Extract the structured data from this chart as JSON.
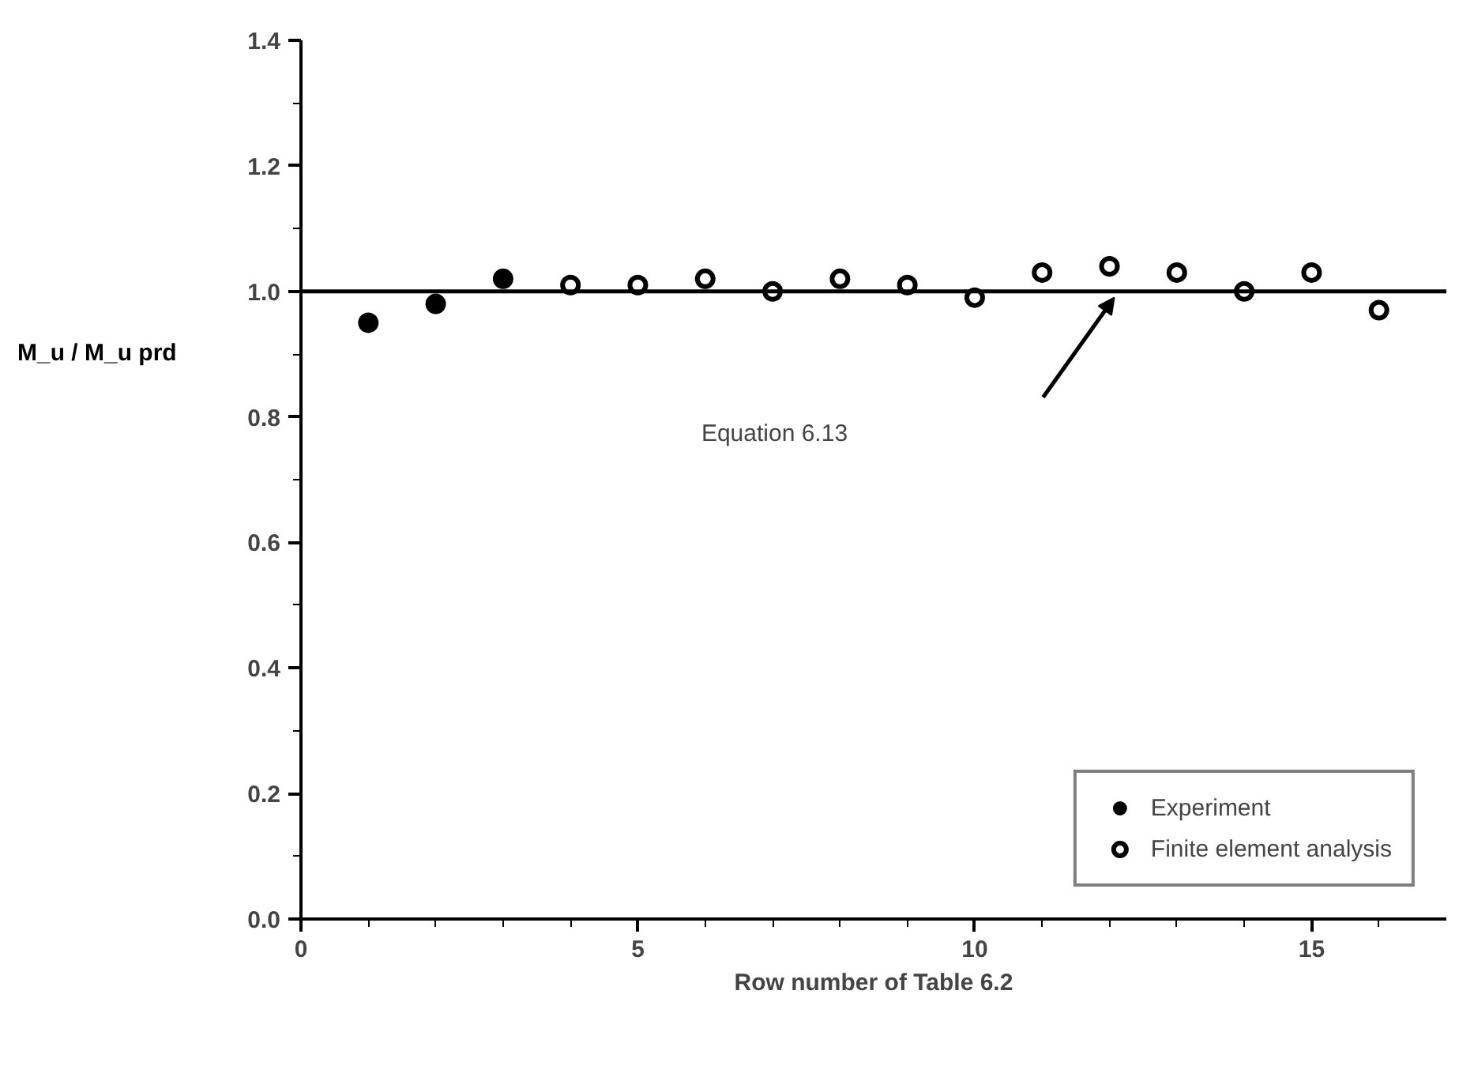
{
  "chart_data": {
    "type": "scatter",
    "xlabel": "Row number of Table 6.2",
    "ylabel": "M_u / M_u prd",
    "xlim": [
      0,
      17
    ],
    "ylim": [
      0,
      1.4
    ],
    "xticks": [
      0,
      {
        "value": 1,
        "label": null
      },
      {
        "value": 2,
        "label": null
      },
      {
        "value": 3,
        "label": null
      },
      {
        "value": 4,
        "label": null
      },
      5,
      {
        "value": 6,
        "label": null
      },
      {
        "value": 7,
        "label": null
      },
      {
        "value": 8,
        "label": null
      },
      {
        "value": 9,
        "label": null
      },
      10,
      {
        "value": 11,
        "label": null
      },
      {
        "value": 12,
        "label": null
      },
      {
        "value": 13,
        "label": null
      },
      {
        "value": 14,
        "label": null
      },
      15,
      {
        "value": 16,
        "label": null
      }
    ],
    "yticks": [
      {
        "value": 0,
        "label": "0.0"
      },
      {
        "value": 0.1,
        "label": null
      },
      {
        "value": 0.2,
        "label": "0.2"
      },
      {
        "value": 0.3,
        "label": null
      },
      {
        "value": 0.4,
        "label": "0.4"
      },
      {
        "value": 0.5,
        "label": null
      },
      {
        "value": 0.6,
        "label": "0.6"
      },
      {
        "value": 0.7,
        "label": null
      },
      {
        "value": 0.8,
        "label": "0.8"
      },
      {
        "value": 0.9,
        "label": null
      },
      {
        "value": 1,
        "label": "1.0"
      },
      {
        "value": 1.1,
        "label": null
      },
      {
        "value": 1.2,
        "label": "1.2"
      },
      {
        "value": 1.3,
        "label": null
      },
      {
        "value": 1.4,
        "label": "1.4"
      }
    ],
    "marker": "circle",
    "grid": false,
    "legend": "bottom right",
    "series": [
      {
        "name": "Experiment",
        "color": "#000000",
        "x": [
          1,
          2,
          3
        ],
        "values": [
          0.95,
          0.98,
          1.02
        ]
      },
      {
        "name": "Finite element analysis",
        "color": "#000000",
        "x": [
          4,
          5,
          6,
          7,
          8,
          9,
          10,
          11,
          12,
          13,
          14,
          15,
          16
        ],
        "values": [
          1.01,
          1.01,
          1.02,
          1.0,
          1.02,
          1.01,
          0.99,
          1.03,
          1.04,
          1.03,
          1.0,
          1.03,
          0.97
        ]
      }
    ],
    "ref_lines": [
      {
        "axis": "y",
        "value": 1.0,
        "color": "#000000",
        "line_style": "solid"
      }
    ],
    "annotations": [
      "Equation 6.13"
    ]
  }
}
